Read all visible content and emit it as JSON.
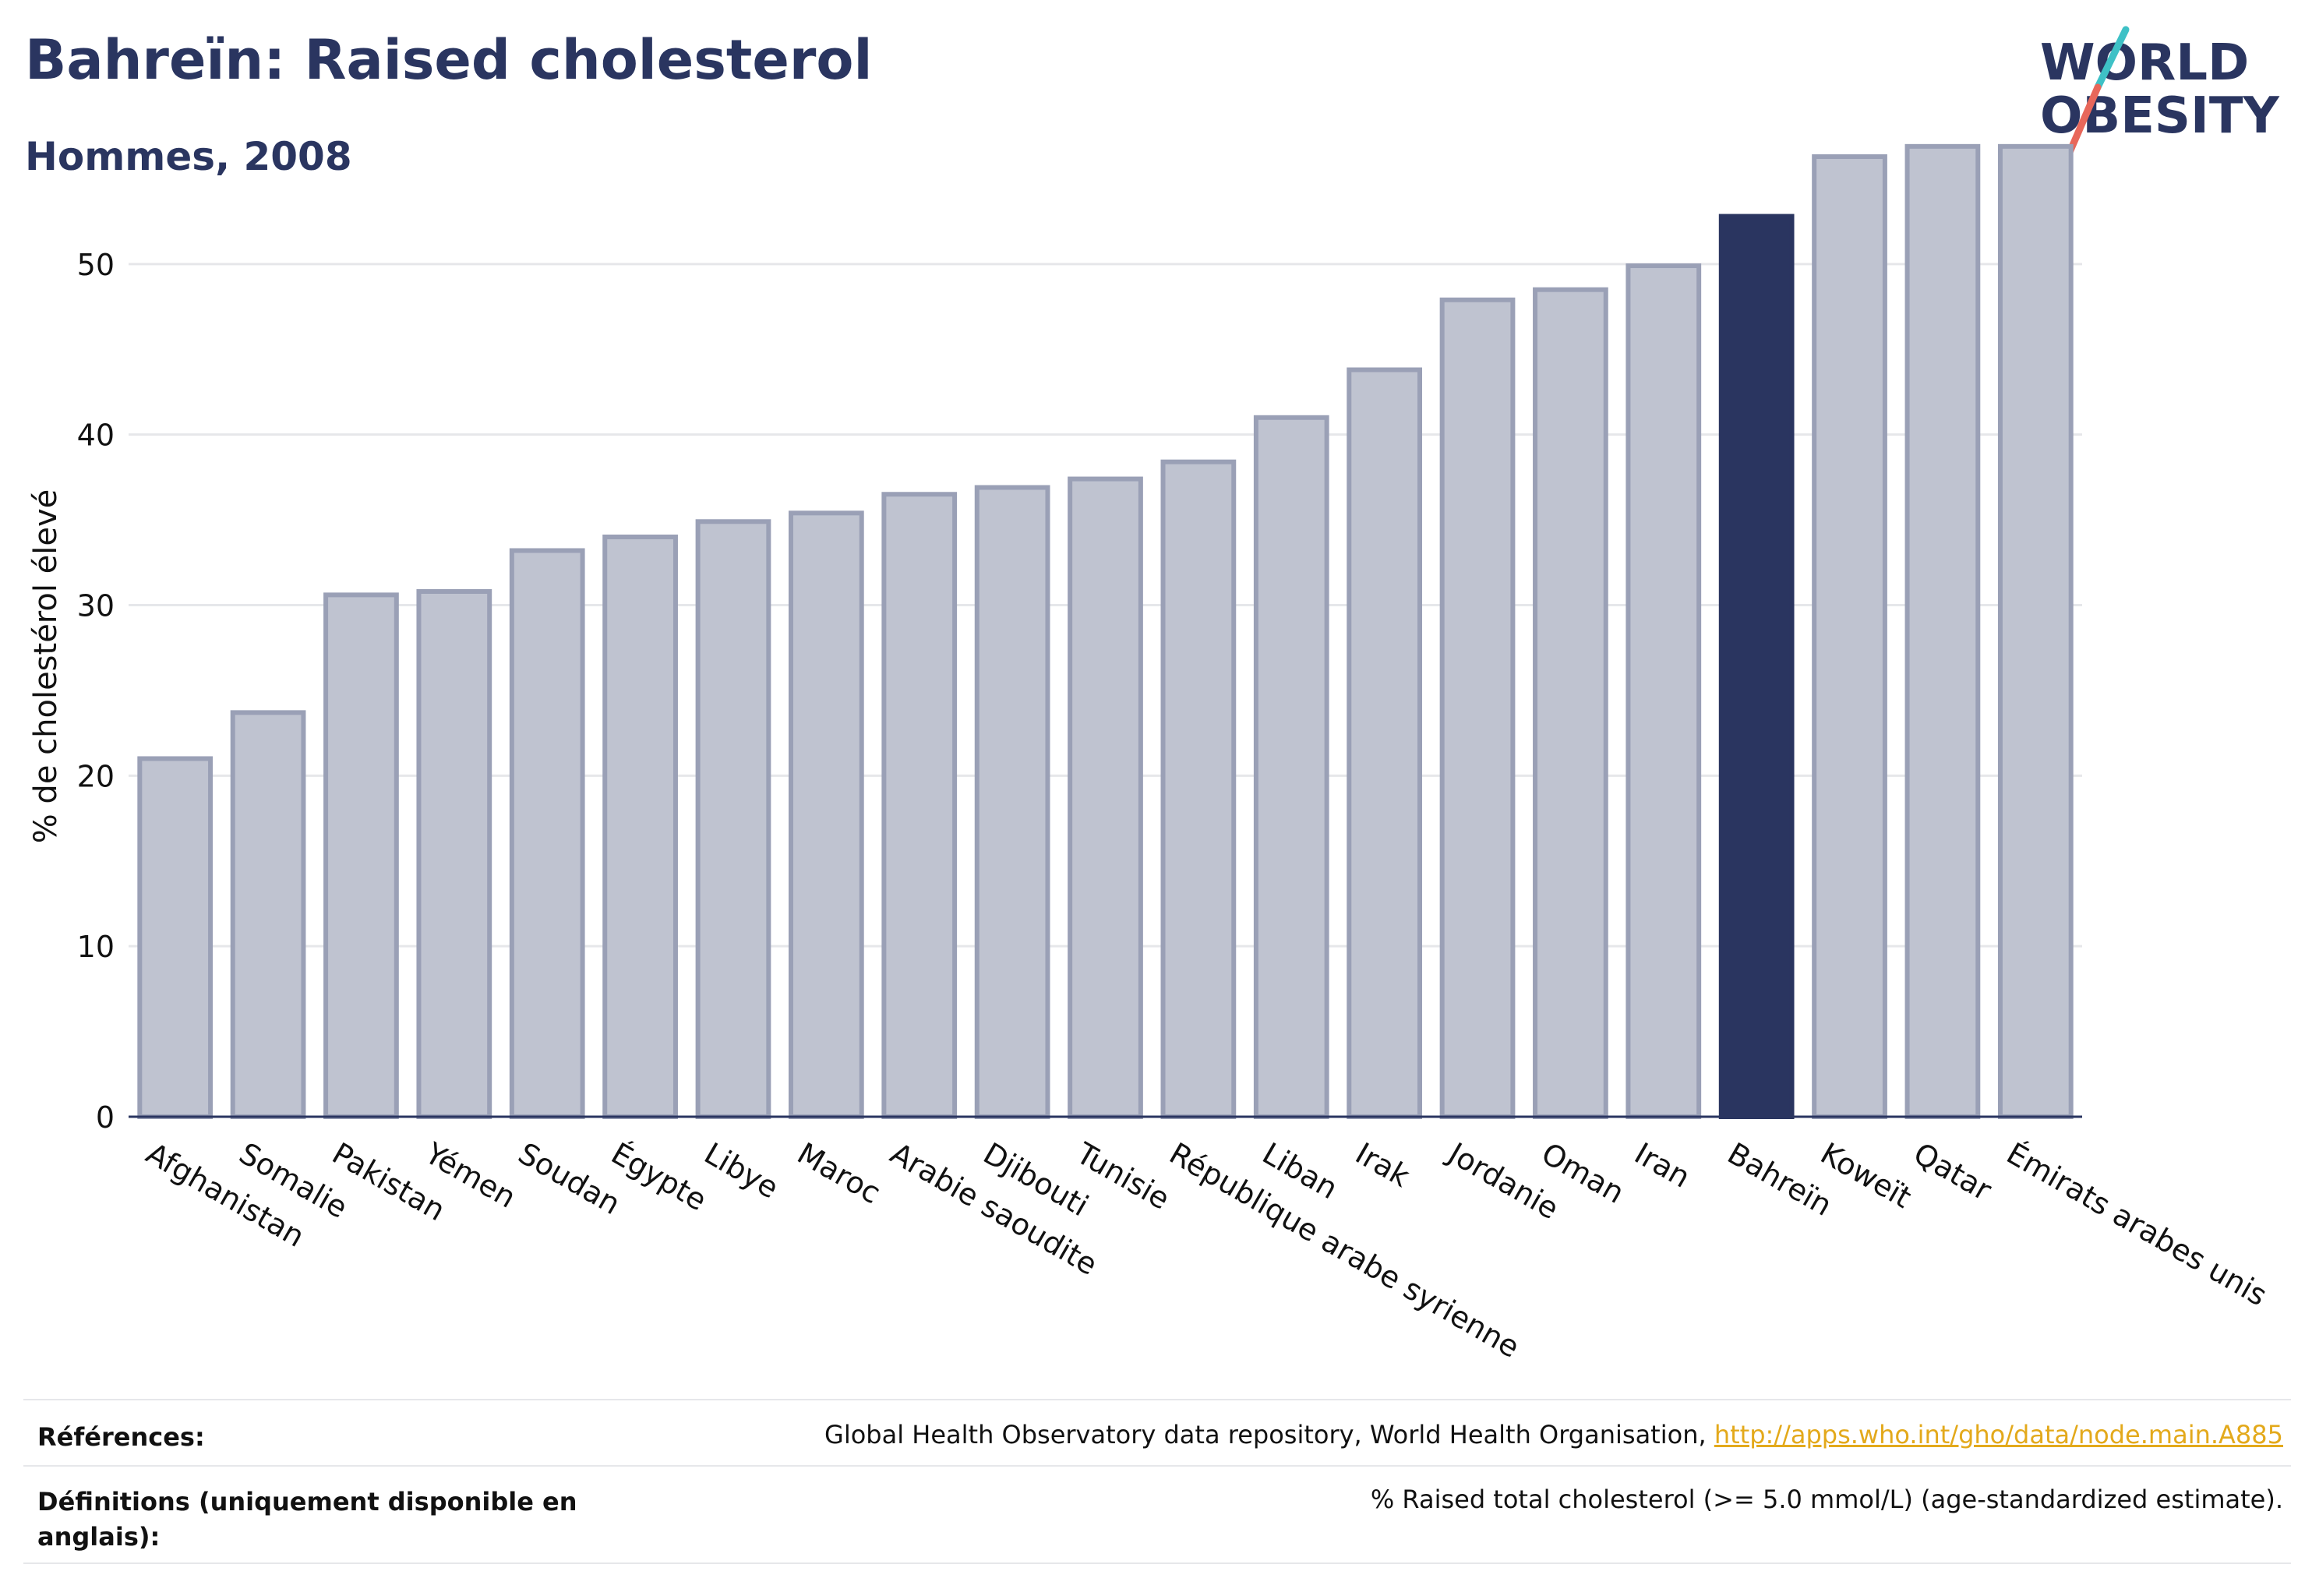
{
  "header": {
    "title": "Bahreïn: Raised cholesterol",
    "subtitle": "Hommes, 2008"
  },
  "logo": {
    "line1": "WORLD",
    "line2": "OBESITY",
    "colors": {
      "text": "#2a3560",
      "slash_top": "#3ec1c6",
      "slash_bottom": "#e8675a"
    }
  },
  "colors": {
    "highlight": "#2a3560",
    "bar_fill": "#bfc3d0",
    "bar_stroke": "#9aa0b6",
    "grid": "#e6e7ea",
    "link": "#e3a91b"
  },
  "chart_data": {
    "type": "bar",
    "ylabel": "% de cholestérol élevé",
    "ylim": [
      0,
      60
    ],
    "yticks": [
      0,
      10,
      20,
      30,
      40,
      50
    ],
    "grid": true,
    "highlight": "Bahreïn",
    "categories": [
      "Afghanistan",
      "Somalie",
      "Pakistan",
      "Yémen",
      "Soudan",
      "Égypte",
      "Libye",
      "Maroc",
      "Arabie saoudite",
      "Djibouti",
      "Tunisie",
      "République arabe syrienne",
      "Liban",
      "Irak",
      "Jordanie",
      "Oman",
      "Iran",
      "Bahreïn",
      "Koweït",
      "Qatar",
      "Émirats arabes unis"
    ],
    "values": [
      21.0,
      23.7,
      30.6,
      30.8,
      33.2,
      34.0,
      34.9,
      35.4,
      36.5,
      36.9,
      37.4,
      38.4,
      41.0,
      43.8,
      47.9,
      48.5,
      49.9,
      52.8,
      56.3,
      56.9,
      56.9
    ]
  },
  "footer": {
    "references_label": "Références:",
    "references_text": "Global Health Observatory data repository, World Health Organisation, ",
    "references_link": "http://apps.who.int/gho/data/node.main.A885",
    "definitions_label_1": "Définitions (uniquement disponible en",
    "definitions_label_2": "anglais):",
    "definitions_text": "% Raised total cholesterol (>= 5.0 mmol/L) (age-standardized estimate)."
  }
}
